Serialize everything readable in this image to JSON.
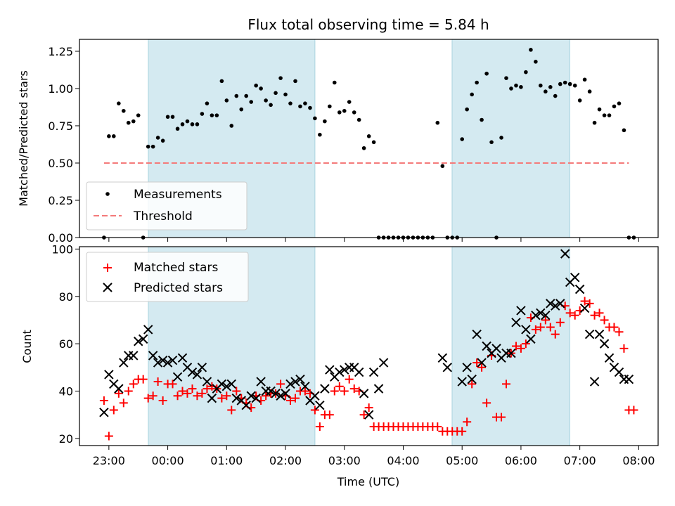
{
  "title": "Flux total observing time = 5.84 h",
  "xlabel": "Time (UTC)",
  "chart_data": [
    {
      "type": "scatter",
      "ylabel": "Matched/Predicted stars",
      "ylim": [
        0,
        1.33
      ],
      "yticks": [
        "0.00",
        "0.25",
        "0.50",
        "0.75",
        "1.00",
        "1.25"
      ],
      "xlim": [
        -0.5,
        9.33
      ],
      "shaded_spans": [
        [
          0.67,
          3.5
        ],
        [
          5.83,
          7.83
        ]
      ],
      "shade_color": "#d4eaf1",
      "legend": {
        "position": "lower-left",
        "entries": [
          "Measurements",
          "Threshold"
        ]
      },
      "series": [
        {
          "name": "Measurements",
          "color": "#000000",
          "marker": "dot",
          "x": [
            -0.083,
            0.0,
            0.083,
            0.167,
            0.25,
            0.333,
            0.417,
            0.5,
            0.583,
            0.667,
            0.75,
            0.833,
            0.917,
            1.0,
            1.083,
            1.167,
            1.25,
            1.333,
            1.417,
            1.5,
            1.583,
            1.667,
            1.75,
            1.833,
            1.917,
            2.0,
            2.083,
            2.167,
            2.25,
            2.333,
            2.417,
            2.5,
            2.583,
            2.667,
            2.75,
            2.833,
            2.917,
            3.0,
            3.083,
            3.167,
            3.25,
            3.333,
            3.417,
            3.5,
            3.583,
            3.667,
            3.75,
            3.833,
            3.917,
            4.0,
            4.083,
            4.167,
            4.25,
            4.333,
            4.417,
            4.5,
            4.583,
            4.667,
            4.75,
            4.833,
            4.917,
            5.0,
            5.083,
            5.167,
            5.25,
            5.333,
            5.417,
            5.5,
            5.583,
            5.667,
            5.75,
            5.833,
            5.917,
            6.0,
            6.083,
            6.167,
            6.25,
            6.333,
            6.417,
            6.5,
            6.583,
            6.667,
            6.75,
            6.833,
            6.917,
            7.0,
            7.083,
            7.167,
            7.25,
            7.333,
            7.417,
            7.5,
            7.583,
            7.667,
            7.75,
            7.833,
            7.917,
            8.0,
            8.083,
            8.167,
            8.25,
            8.333,
            8.417,
            8.5,
            8.583,
            8.667,
            8.75,
            8.833,
            8.917
          ],
          "y": [
            0.0,
            0.68,
            0.68,
            0.9,
            0.85,
            0.77,
            0.78,
            0.82,
            0.0,
            0.61,
            0.61,
            0.67,
            0.65,
            0.81,
            0.81,
            0.73,
            0.76,
            0.78,
            0.76,
            0.76,
            0.83,
            0.9,
            0.82,
            0.82,
            1.05,
            0.92,
            0.75,
            0.95,
            0.86,
            0.95,
            0.91,
            1.02,
            1.0,
            0.92,
            0.89,
            0.97,
            1.07,
            0.96,
            0.9,
            1.05,
            0.88,
            0.9,
            0.87,
            0.8,
            0.69,
            0.78,
            0.88,
            1.04,
            0.84,
            0.85,
            0.91,
            0.84,
            0.79,
            0.6,
            0.68,
            0.64,
            0.0,
            0.0,
            0.0,
            0.0,
            0.0,
            0.0,
            0.0,
            0.0,
            0.0,
            0.0,
            0.0,
            0.0,
            0.77,
            0.48,
            0.0,
            0.0,
            0.0,
            0.66,
            0.86,
            0.96,
            1.04,
            0.79,
            1.1,
            0.64,
            0.0,
            0.67,
            1.07,
            1.0,
            1.02,
            1.01,
            1.11,
            1.26,
            1.18,
            1.02,
            0.98,
            1.01,
            0.95,
            1.03,
            1.04,
            1.03,
            1.02,
            0.92,
            1.06,
            0.98,
            0.77,
            0.86,
            0.82,
            0.82,
            0.88,
            0.9,
            0.72,
            0.0,
            0.0
          ]
        },
        {
          "name": "Threshold",
          "color": "#f47a7a",
          "style": "dashed",
          "x": [
            -0.083,
            8.833
          ],
          "y": [
            0.5,
            0.5
          ]
        }
      ]
    },
    {
      "type": "scatter",
      "ylabel": "Count",
      "ylim": [
        17,
        101
      ],
      "yticks": [
        "20",
        "40",
        "60",
        "80",
        "100"
      ],
      "xlim": [
        -0.5,
        9.33
      ],
      "xticks": [
        "23:00",
        "00:00",
        "01:00",
        "02:00",
        "03:00",
        "04:00",
        "05:00",
        "06:00",
        "07:00",
        "08:00"
      ],
      "shaded_spans": [
        [
          0.67,
          3.5
        ],
        [
          5.83,
          7.83
        ]
      ],
      "shade_color": "#d4eaf1",
      "legend": {
        "position": "top-left",
        "entries": [
          "Matched stars",
          "Predicted stars"
        ]
      },
      "series": [
        {
          "name": "Matched stars",
          "color": "#ff0000",
          "marker": "plus",
          "x": [
            -0.083,
            0.0,
            0.083,
            0.167,
            0.25,
            0.333,
            0.417,
            0.5,
            0.583,
            0.667,
            0.75,
            0.833,
            0.917,
            1.0,
            1.083,
            1.167,
            1.25,
            1.333,
            1.417,
            1.5,
            1.583,
            1.667,
            1.75,
            1.833,
            1.917,
            2.0,
            2.083,
            2.167,
            2.25,
            2.333,
            2.417,
            2.5,
            2.583,
            2.667,
            2.75,
            2.833,
            2.917,
            3.0,
            3.083,
            3.167,
            3.25,
            3.333,
            3.417,
            3.5,
            3.583,
            3.667,
            3.75,
            3.833,
            3.917,
            4.0,
            4.083,
            4.167,
            4.25,
            4.333,
            4.417,
            4.5,
            4.583,
            4.667,
            4.75,
            4.833,
            4.917,
            5.0,
            5.083,
            5.167,
            5.25,
            5.333,
            5.417,
            5.5,
            5.583,
            5.667,
            5.75,
            5.833,
            5.917,
            6.0,
            6.083,
            6.167,
            6.25,
            6.333,
            6.417,
            6.5,
            6.583,
            6.667,
            6.75,
            6.833,
            6.917,
            7.0,
            7.083,
            7.167,
            7.25,
            7.333,
            7.417,
            7.5,
            7.583,
            7.667,
            7.75,
            7.833,
            7.917,
            8.0,
            8.083,
            8.167,
            8.25,
            8.333,
            8.417,
            8.5,
            8.583,
            8.667,
            8.75,
            8.833,
            8.917
          ],
          "y": [
            36,
            21,
            32,
            39,
            35,
            40,
            43,
            45,
            45,
            37,
            38,
            44,
            36,
            43,
            43,
            38,
            40,
            39,
            41,
            38,
            39,
            41,
            42,
            41,
            37,
            38,
            32,
            40,
            37,
            35,
            33,
            38,
            36,
            38,
            39,
            39,
            43,
            38,
            36,
            37,
            40,
            40,
            39,
            32,
            25,
            30,
            30,
            40,
            42,
            40,
            45,
            41,
            40,
            30,
            33,
            25,
            25,
            25,
            25,
            25,
            25,
            25,
            25,
            25,
            25,
            25,
            25,
            25,
            25,
            23,
            23,
            23,
            23,
            23,
            27,
            43,
            52,
            50,
            35,
            55,
            29,
            29,
            43,
            56,
            59,
            58,
            60,
            71,
            66,
            67,
            70,
            67,
            64,
            69,
            76,
            73,
            72,
            74,
            78,
            77,
            72,
            73,
            70,
            67,
            67,
            65,
            58,
            32,
            32
          ]
        },
        {
          "name": "Predicted stars",
          "color": "#000000",
          "marker": "x",
          "x": [
            -0.083,
            0.0,
            0.083,
            0.167,
            0.25,
            0.333,
            0.417,
            0.5,
            0.583,
            0.667,
            0.75,
            0.833,
            0.917,
            1.0,
            1.083,
            1.167,
            1.25,
            1.333,
            1.417,
            1.5,
            1.583,
            1.667,
            1.75,
            1.833,
            1.917,
            2.0,
            2.083,
            2.167,
            2.25,
            2.333,
            2.417,
            2.5,
            2.583,
            2.667,
            2.75,
            2.833,
            2.917,
            3.0,
            3.083,
            3.167,
            3.25,
            3.333,
            3.417,
            3.5,
            3.583,
            3.667,
            3.75,
            3.833,
            3.917,
            4.0,
            4.083,
            4.167,
            4.25,
            4.333,
            4.417,
            4.5,
            4.583,
            4.667,
            5.667,
            5.75,
            6.0,
            6.083,
            6.167,
            6.25,
            6.333,
            6.417,
            6.5,
            6.583,
            6.667,
            6.75,
            6.833,
            6.917,
            7.0,
            7.083,
            7.167,
            7.25,
            7.333,
            7.417,
            7.5,
            7.583,
            7.667,
            7.75,
            7.833,
            7.917,
            8.0,
            8.083,
            8.167,
            8.25,
            8.333,
            8.417,
            8.5,
            8.583,
            8.667,
            8.75,
            8.833
          ],
          "y": [
            31,
            47,
            43,
            41,
            52,
            55,
            55,
            61,
            62,
            66,
            55,
            52,
            53,
            52,
            53,
            46,
            54,
            50,
            48,
            47,
            50,
            44,
            37,
            41,
            43,
            42,
            43,
            37,
            36,
            34,
            38,
            37,
            44,
            40,
            40,
            39,
            38,
            39,
            43,
            44,
            45,
            42,
            36,
            38,
            34,
            41,
            49,
            46,
            48,
            49,
            50,
            50,
            48,
            39,
            30,
            48,
            41,
            52,
            54,
            50,
            44,
            50,
            45,
            64,
            52,
            59,
            56,
            58,
            54,
            56,
            56,
            69,
            74,
            66,
            62,
            72,
            73,
            72,
            77,
            76,
            77,
            98,
            86,
            88,
            83,
            75,
            64,
            44,
            64,
            60,
            54,
            50,
            48,
            45,
            45
          ]
        }
      ]
    }
  ]
}
